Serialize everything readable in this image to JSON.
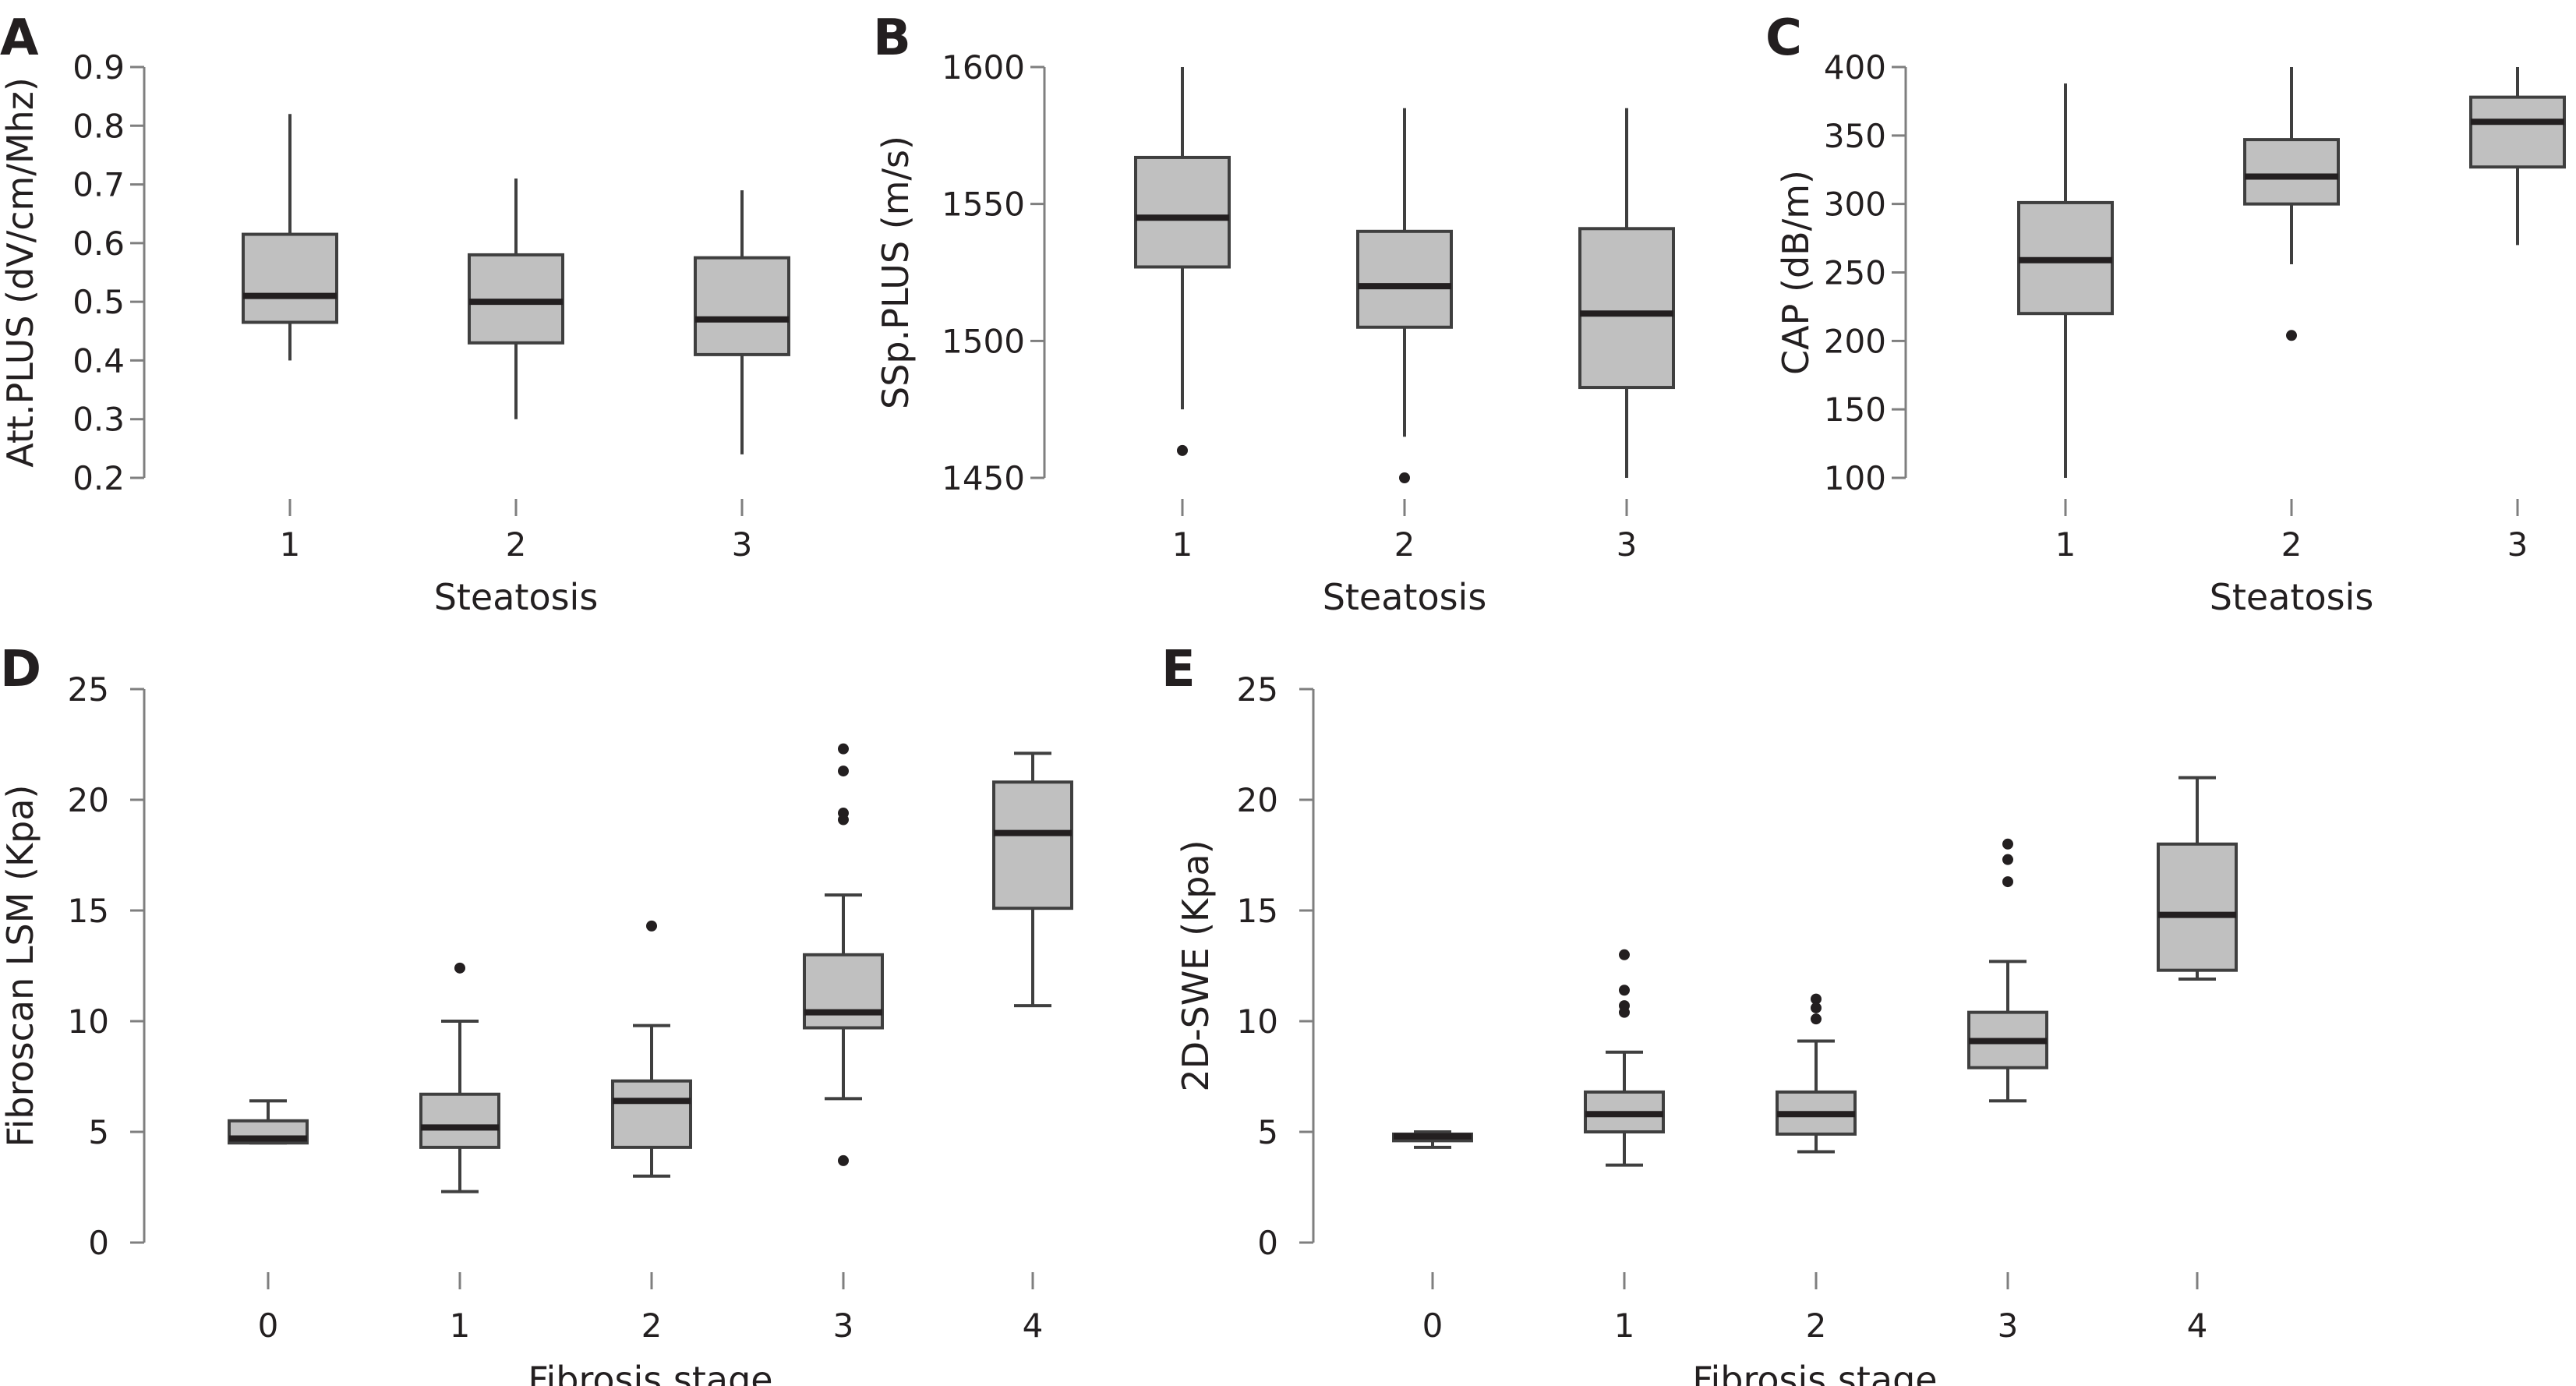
{
  "chart_data": [
    {
      "type": "box",
      "panel": "A",
      "xlabel": "Steatosis",
      "ylabel": "Att.PLUS (dV/cm/Mhz)",
      "ylim": [
        0.2,
        0.9
      ],
      "yticks": [
        "0.2",
        "0.3",
        "0.4",
        "0.5",
        "0.6",
        "0.7",
        "0.8",
        "0.9"
      ],
      "categories": [
        "1",
        "2",
        "3"
      ],
      "boxes": [
        {
          "category": "1",
          "whisker_low": 0.4,
          "q1": 0.465,
          "median": 0.51,
          "q3": 0.615,
          "whisker_high": 0.82,
          "outliers": []
        },
        {
          "category": "2",
          "whisker_low": 0.3,
          "q1": 0.43,
          "median": 0.5,
          "q3": 0.58,
          "whisker_high": 0.71,
          "outliers": []
        },
        {
          "category": "3",
          "whisker_low": 0.24,
          "q1": 0.41,
          "median": 0.47,
          "q3": 0.575,
          "whisker_high": 0.69,
          "outliers": []
        }
      ]
    },
    {
      "type": "box",
      "panel": "B",
      "xlabel": "Steatosis",
      "ylabel": "SSp.PLUS (m/s)",
      "ylim": [
        1450,
        1600
      ],
      "yticks": [
        "1450",
        "1500",
        "1550",
        "1600"
      ],
      "categories": [
        "1",
        "2",
        "3"
      ],
      "boxes": [
        {
          "category": "1",
          "whisker_low": 1475,
          "q1": 1527,
          "median": 1545,
          "q3": 1567,
          "whisker_high": 1600,
          "outliers": [
            1460
          ]
        },
        {
          "category": "2",
          "whisker_low": 1465,
          "q1": 1505,
          "median": 1520,
          "q3": 1540,
          "whisker_high": 1585,
          "outliers": [
            1450
          ]
        },
        {
          "category": "3",
          "whisker_low": 1450,
          "q1": 1483,
          "median": 1510,
          "q3": 1541,
          "whisker_high": 1585,
          "outliers": []
        }
      ]
    },
    {
      "type": "box",
      "panel": "C",
      "xlabel": "Steatosis",
      "ylabel": "CAP (dB/m)",
      "ylim": [
        100,
        400
      ],
      "yticks": [
        "100",
        "150",
        "200",
        "250",
        "300",
        "350",
        "400"
      ],
      "categories": [
        "1",
        "2",
        "3"
      ],
      "boxes": [
        {
          "category": "1",
          "whisker_low": 100,
          "q1": 220,
          "median": 259,
          "q3": 301,
          "whisker_high": 388,
          "outliers": []
        },
        {
          "category": "2",
          "whisker_low": 256,
          "q1": 300,
          "median": 320,
          "q3": 347,
          "whisker_high": 400,
          "outliers": [
            204
          ]
        },
        {
          "category": "3",
          "whisker_low": 270,
          "q1": 327,
          "median": 360,
          "q3": 378,
          "whisker_high": 400,
          "outliers": []
        }
      ]
    },
    {
      "type": "box",
      "panel": "D",
      "xlabel": "Fibrosis stage",
      "ylabel": "Fibroscan LSM (Kpa)",
      "ylim": [
        0,
        25
      ],
      "yticks": [
        "0",
        "5",
        "10",
        "15",
        "20",
        "25"
      ],
      "categories": [
        "0",
        "1",
        "2",
        "3",
        "4"
      ],
      "boxes": [
        {
          "category": "0",
          "whisker_low": 4.5,
          "q1": 4.5,
          "median": 4.7,
          "q3": 5.5,
          "whisker_high": 6.4,
          "outliers": []
        },
        {
          "category": "1",
          "whisker_low": 2.3,
          "q1": 4.3,
          "median": 5.2,
          "q3": 6.7,
          "whisker_high": 10.0,
          "outliers": [
            12.4
          ]
        },
        {
          "category": "2",
          "whisker_low": 3.0,
          "q1": 4.3,
          "median": 6.4,
          "q3": 7.3,
          "whisker_high": 9.8,
          "outliers": [
            14.3
          ]
        },
        {
          "category": "3",
          "whisker_low": 6.5,
          "q1": 9.7,
          "median": 10.4,
          "q3": 13.0,
          "whisker_high": 15.7,
          "outliers": [
            22.3,
            21.3,
            19.4,
            19.1,
            3.7
          ]
        },
        {
          "category": "4",
          "whisker_low": 10.7,
          "q1": 15.1,
          "median": 18.5,
          "q3": 20.8,
          "whisker_high": 22.1,
          "outliers": []
        }
      ]
    },
    {
      "type": "box",
      "panel": "E",
      "xlabel": "Fibrosis stage",
      "ylabel": "2D-SWE (Kpa)",
      "ylim": [
        0,
        25
      ],
      "yticks": [
        "0",
        "5",
        "10",
        "15",
        "20",
        "25"
      ],
      "categories": [
        "0",
        "1",
        "2",
        "3",
        "4"
      ],
      "boxes": [
        {
          "category": "0",
          "whisker_low": 4.3,
          "q1": 4.6,
          "median": 4.8,
          "q3": 4.9,
          "whisker_high": 5.0,
          "outliers": []
        },
        {
          "category": "1",
          "whisker_low": 3.5,
          "q1": 5.0,
          "median": 5.8,
          "q3": 6.8,
          "whisker_high": 8.6,
          "outliers": [
            13.0,
            11.4,
            10.7,
            10.4
          ]
        },
        {
          "category": "2",
          "whisker_low": 4.1,
          "q1": 4.9,
          "median": 5.8,
          "q3": 6.8,
          "whisker_high": 9.1,
          "outliers": [
            11.0,
            10.6,
            10.1
          ]
        },
        {
          "category": "3",
          "whisker_low": 6.4,
          "q1": 7.9,
          "median": 9.1,
          "q3": 10.4,
          "whisker_high": 12.7,
          "outliers": [
            18.0,
            17.3,
            16.3
          ]
        },
        {
          "category": "4",
          "whisker_low": 11.9,
          "q1": 12.3,
          "median": 14.8,
          "q3": 18.0,
          "whisker_high": 21.0,
          "outliers": []
        }
      ]
    }
  ]
}
